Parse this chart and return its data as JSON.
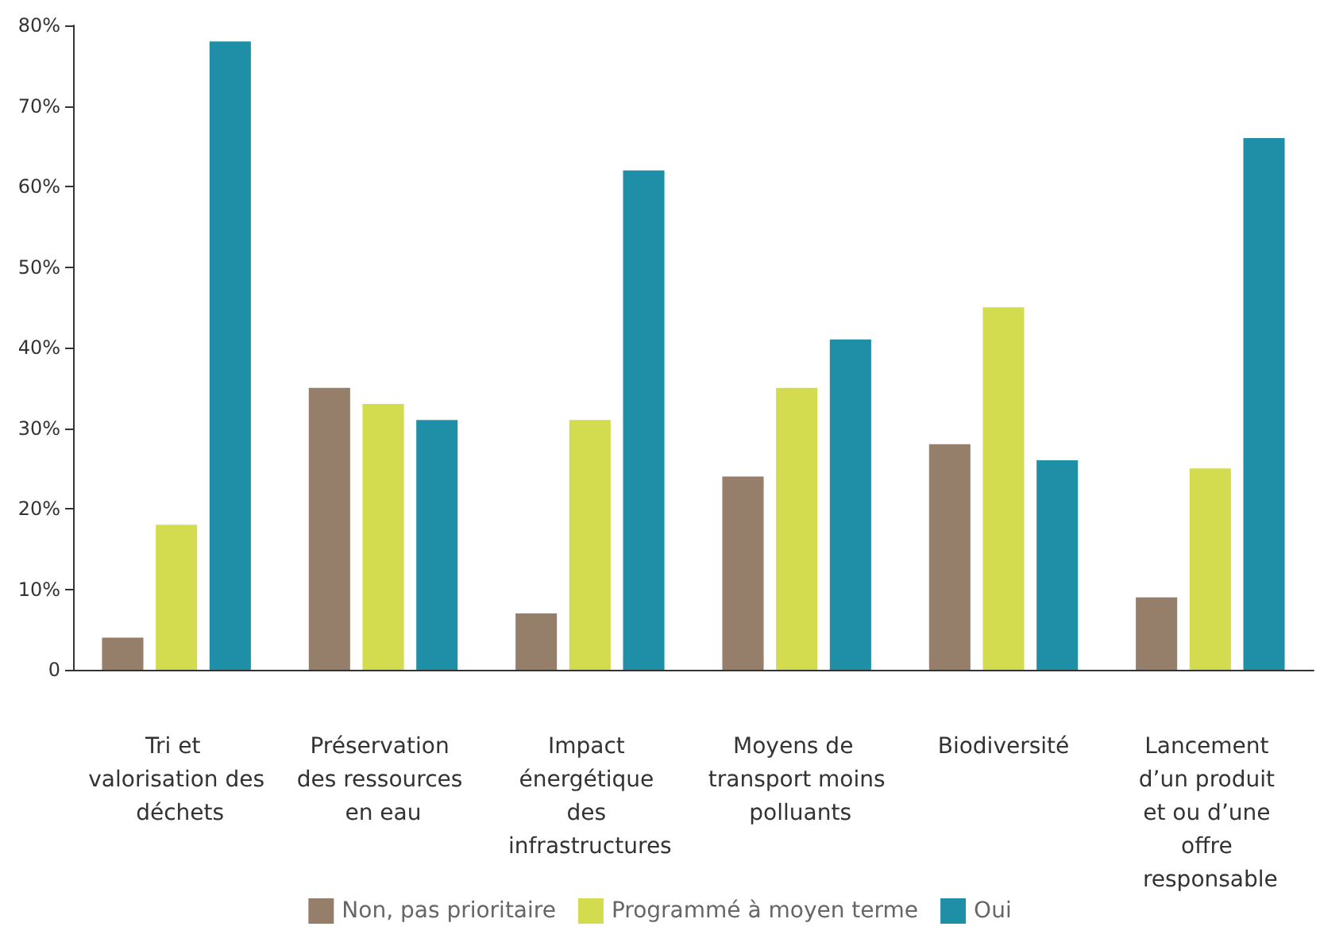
{
  "chart_data": {
    "type": "bar",
    "categories": [
      "Tri et valorisation des déchets",
      "Préservation des ressources en eau",
      "Impact énergétique des infrastructures",
      "Moyens de transport moins polluants",
      "Biodiversité",
      "Lancement d’un produit et ou d’une offre responsable"
    ],
    "series": [
      {
        "name": "Non, pas prioritaire",
        "color": "#957f6b",
        "values": [
          4,
          35,
          7,
          24,
          28,
          9
        ]
      },
      {
        "name": "Programmé à moyen terme",
        "color": "#d3db4e",
        "values": [
          18,
          33,
          31,
          35,
          45,
          25
        ]
      },
      {
        "name": "Oui",
        "color": "#1f8fa8",
        "values": [
          78,
          31,
          62,
          41,
          26,
          66
        ]
      }
    ],
    "ylim": [
      0,
      80
    ],
    "yticks": [
      0,
      {
        "value": 10,
        "label": "10%"
      },
      {
        "value": 20,
        "label": "20%"
      },
      {
        "value": 30,
        "label": "30%"
      },
      {
        "value": 40,
        "label": "40%"
      },
      {
        "value": 50,
        "label": "50%"
      },
      {
        "value": 60,
        "label": "60%"
      },
      {
        "value": 70,
        "label": "70%"
      },
      {
        "value": 80,
        "label": "80%"
      }
    ],
    "grid": false,
    "legend": "bottom"
  }
}
